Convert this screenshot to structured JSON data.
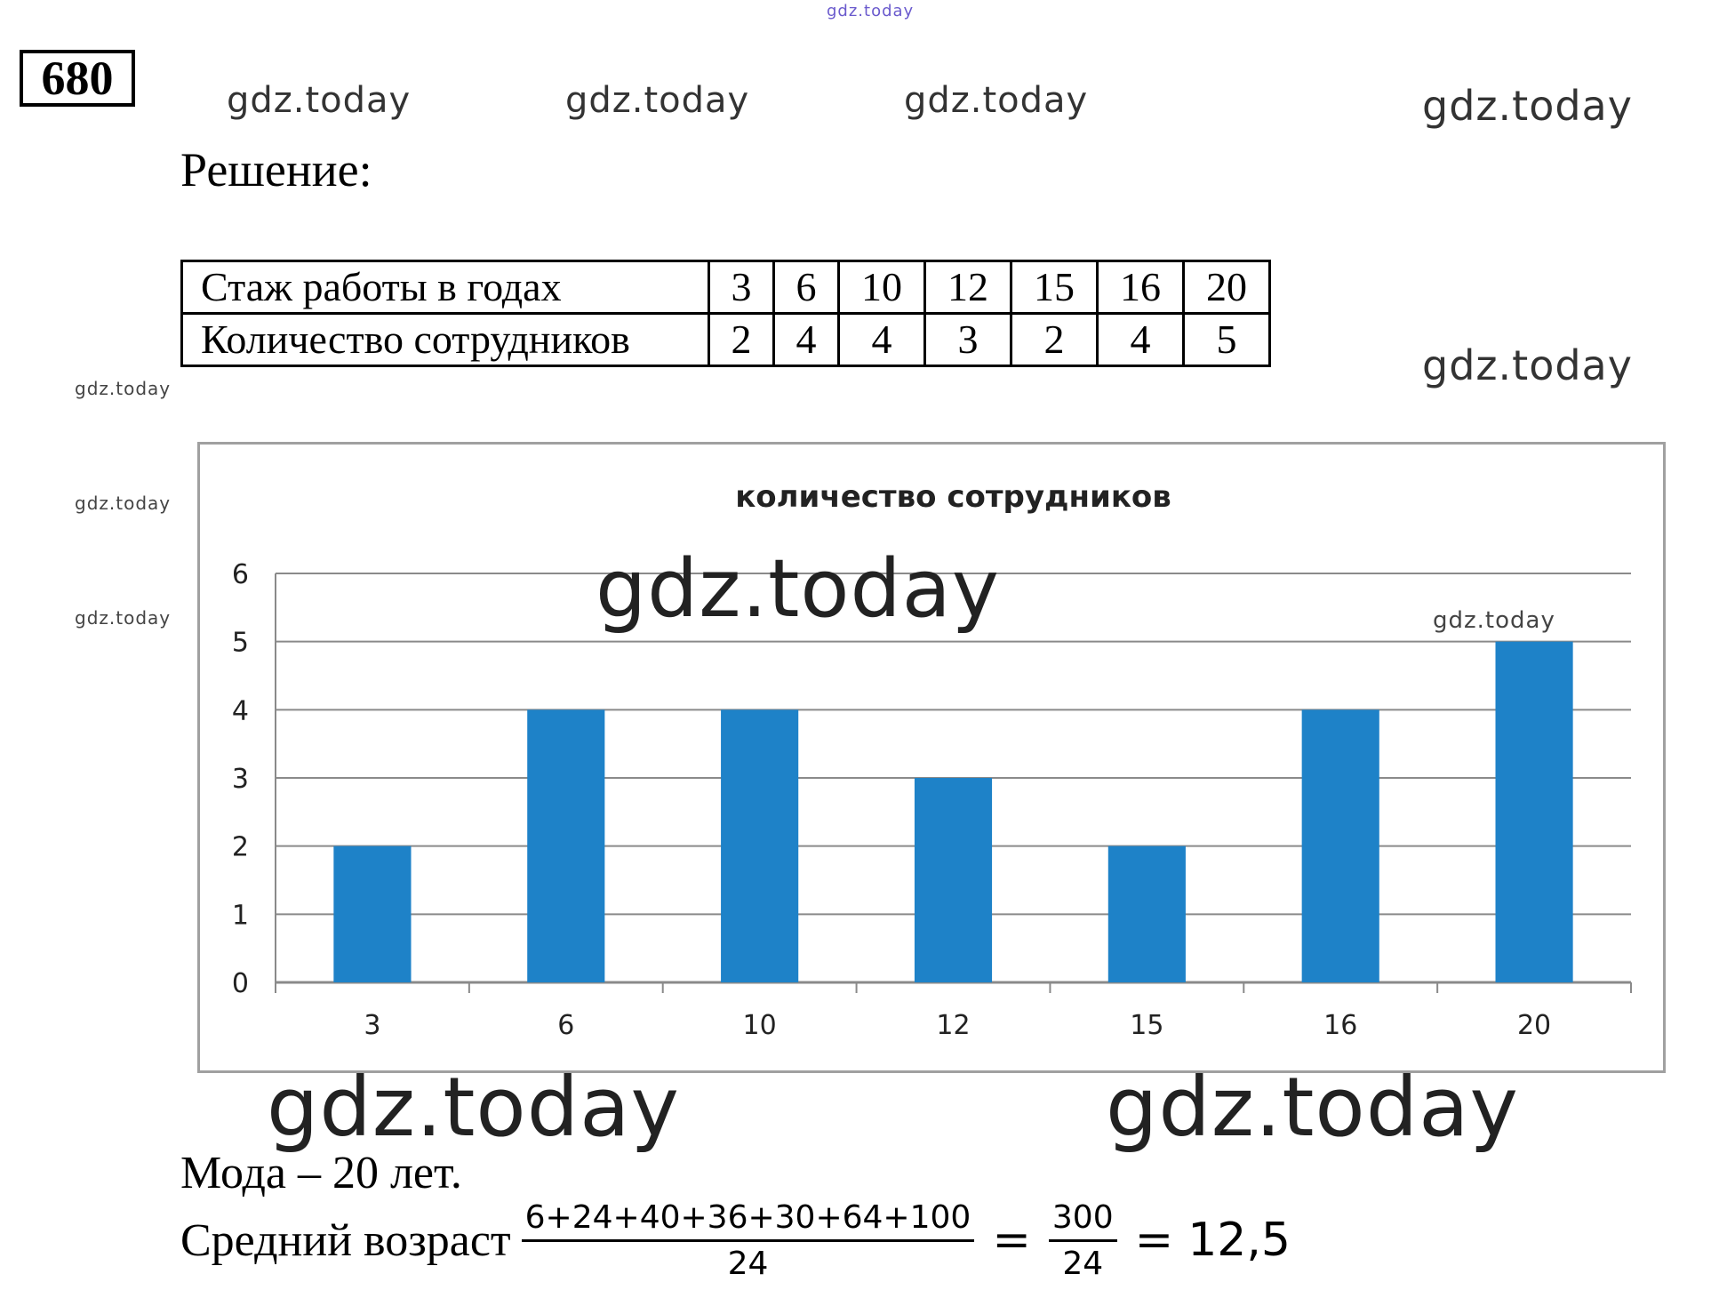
{
  "watermarks": {
    "top": "gdz.today",
    "row1": [
      "gdz.today",
      "gdz.today",
      "gdz.today",
      "gdz.today"
    ],
    "right_mid": "gdz.today",
    "left_small": [
      "gdz.today",
      "gdz.today",
      "gdz.today"
    ],
    "chart_big": "gdz.today",
    "chart_small": "gdz.today",
    "bottom": [
      "gdz.today",
      "gdz.today"
    ]
  },
  "task_number": "680",
  "solution_heading": "Решение:",
  "table": {
    "row1_header": "Стаж работы в годах",
    "row1_values": [
      "3",
      "6",
      "10",
      "12",
      "15",
      "16",
      "20"
    ],
    "row2_header": "Количество сотрудников",
    "row2_values": [
      "2",
      "4",
      "4",
      "3",
      "2",
      "4",
      "5"
    ]
  },
  "chart_data": {
    "type": "bar",
    "title": "количество сотрудников",
    "categories": [
      "3",
      "6",
      "10",
      "12",
      "15",
      "16",
      "20"
    ],
    "values": [
      2,
      4,
      4,
      3,
      2,
      4,
      5
    ],
    "ylim": [
      0,
      6
    ],
    "yticks": [
      "0",
      "1",
      "2",
      "3",
      "4",
      "5",
      "6"
    ],
    "grid": true,
    "bar_color": "#1e82c8"
  },
  "mode_text": "Мода – 20 лет.",
  "mean": {
    "label": "Средний возраст",
    "numerator": "6+24+40+36+30+64+100",
    "denominator": "24",
    "eq1": "=",
    "numerator2": "300",
    "denominator2": "24",
    "eq2": "=",
    "result": "12,5"
  }
}
